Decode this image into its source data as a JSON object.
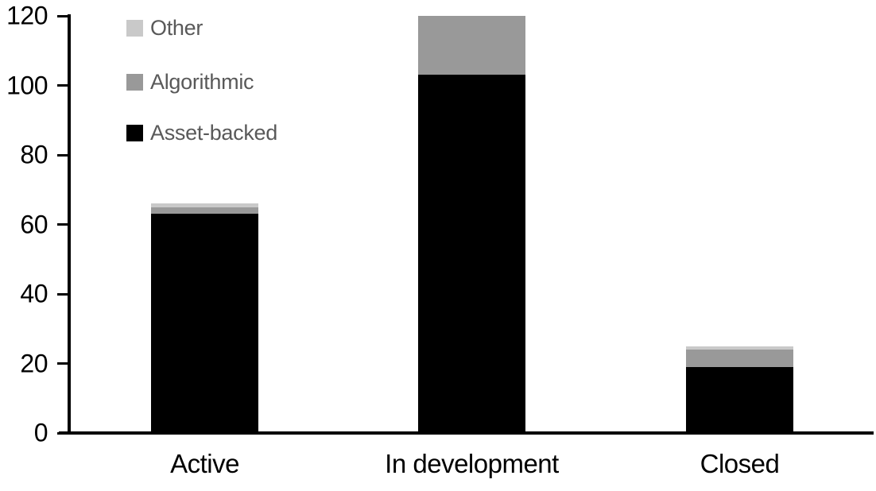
{
  "chart_data": {
    "type": "bar",
    "stacked": true,
    "title": "",
    "xlabel": "",
    "ylabel": "",
    "categories": [
      "Active",
      "In development",
      "Closed"
    ],
    "series": [
      {
        "name": "Asset-backed",
        "color": "#000000",
        "values": [
          63,
          103,
          19
        ]
      },
      {
        "name": "Algorithmic",
        "color": "#999999",
        "values": [
          2,
          17,
          5
        ]
      },
      {
        "name": "Other",
        "color": "#c9c9c9",
        "values": [
          1,
          0,
          1
        ]
      }
    ],
    "stack_totals": [
      66,
      120,
      25
    ],
    "ylim": [
      0,
      120
    ],
    "yticks": [
      0,
      20,
      40,
      60,
      80,
      100,
      120
    ],
    "grid": false,
    "legend": {
      "position": "top-left",
      "entries": [
        {
          "label": "Other",
          "color": "#c9c9c9"
        },
        {
          "label": "Algorithmic",
          "color": "#999999"
        },
        {
          "label": "Asset-backed",
          "color": "#000000"
        }
      ]
    },
    "colors": {
      "axis": "#000000",
      "tick_label": "#000000",
      "category_label": "#000000",
      "legend_text": "#595959",
      "background": "#ffffff"
    }
  }
}
